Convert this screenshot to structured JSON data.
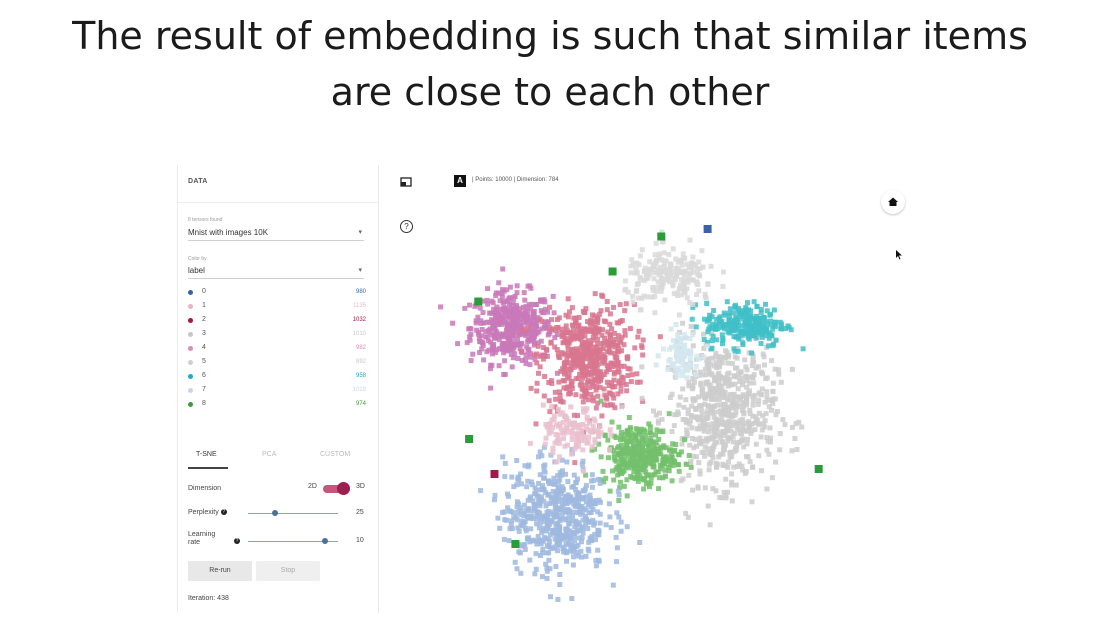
{
  "slide": {
    "title_line1": "The result of embedding is such that similar items",
    "title_line2": "are close to each other"
  },
  "panel": {
    "header": "DATA",
    "dataset_caption": "8 tensors found",
    "dataset_value": "Mnist with images 10K",
    "color_caption": "Color by",
    "color_value": "label",
    "labels": [
      {
        "name": "0",
        "count": "980",
        "color": "#3b62a8"
      },
      {
        "name": "1",
        "count": "1135",
        "color": "#e8b4c8"
      },
      {
        "name": "2",
        "count": "1032",
        "color": "#a3174a"
      },
      {
        "name": "3",
        "count": "1010",
        "color": "#c7c7c7"
      },
      {
        "name": "4",
        "count": "982",
        "color": "#d88fb4"
      },
      {
        "name": "5",
        "count": "892",
        "color": "#cfcfcf"
      },
      {
        "name": "6",
        "count": "958",
        "color": "#25a8c8"
      },
      {
        "name": "7",
        "count": "1028",
        "color": "#c6d5ea"
      },
      {
        "name": "8",
        "count": "974",
        "color": "#3f9b3a"
      }
    ],
    "tabs": [
      "T-SNE",
      "PCA",
      "CUSTOM"
    ],
    "dimension_label": "Dimension",
    "dimension_option_2d": "2D",
    "dimension_option_3d": "3D",
    "perplexity_label": "Perplexity",
    "perplexity_value": "25",
    "perplexity_fraction": 0.3,
    "learning_rate_label_line1": "Learning",
    "learning_rate_label_line2": "rate",
    "learning_rate_value": "10",
    "learning_rate_fraction": 0.85,
    "rerun_button": "Re-run",
    "stop_button": "Stop",
    "iteration_text": "Iteration: 438"
  },
  "toolbar": {
    "selection_icon": "select-rectangle-icon",
    "night_icon": "night-mode-icon",
    "label_icon": "label-toggle-icon",
    "label_icon_glyph": "A",
    "points_text": "Points: 10000",
    "dimension_text": "Dimension: 784"
  },
  "viewer": {
    "help_glyph": "?",
    "home_icon": "home-icon"
  },
  "chart_data": {
    "type": "scatter",
    "title": "",
    "xlabel": "",
    "ylabel": "",
    "series": [
      {
        "name": "4",
        "color": "#c978b9",
        "cx": -5.5,
        "cy": 3.2,
        "sx": 1.6,
        "sy": 1.3,
        "n": 420
      },
      {
        "name": "2",
        "color": "#d8758f",
        "cx": -2.2,
        "cy": 2.0,
        "sx": 1.8,
        "sy": 1.9,
        "n": 520
      },
      {
        "name": "3",
        "color": "#cdcdcd",
        "cx": 3.6,
        "cy": -0.2,
        "sx": 2.1,
        "sy": 2.6,
        "n": 620
      },
      {
        "name": "6",
        "color": "#3fc0c8",
        "cx": 4.6,
        "cy": 3.3,
        "sx": 1.6,
        "sy": 0.8,
        "n": 240
      },
      {
        "name": "8",
        "color": "#72bf6b",
        "cx": 0.0,
        "cy": -1.9,
        "sx": 1.5,
        "sy": 1.1,
        "n": 320
      },
      {
        "name": "7",
        "color": "#9fb9df",
        "cx": -3.6,
        "cy": -4.3,
        "sx": 2.0,
        "sy": 2.0,
        "n": 520
      },
      {
        "name": "1",
        "color": "#eabfcf",
        "cx": -2.8,
        "cy": -1.0,
        "sx": 1.2,
        "sy": 0.9,
        "n": 120
      },
      {
        "name": "5",
        "color": "#d9d9d9",
        "cx": 1.4,
        "cy": 5.2,
        "sx": 1.8,
        "sy": 1.0,
        "n": 200
      },
      {
        "name": "0",
        "color": "#d4e6ef",
        "cx": 1.8,
        "cy": 2.2,
        "sx": 0.7,
        "sy": 0.8,
        "n": 80
      }
    ],
    "outliers": [
      {
        "x": 0.9,
        "y": 6.9,
        "color": "#2a9c3a"
      },
      {
        "x": 2.9,
        "y": 7.2,
        "color": "#3b62a8"
      },
      {
        "x": -7.0,
        "y": 4.3,
        "color": "#2a9c3a"
      },
      {
        "x": -7.4,
        "y": -1.2,
        "color": "#2a9c3a"
      },
      {
        "x": -6.3,
        "y": -2.6,
        "color": "#a3174a"
      },
      {
        "x": -5.4,
        "y": -5.4,
        "color": "#2a9c3a"
      },
      {
        "x": 7.7,
        "y": -2.4,
        "color": "#2a9c3a"
      },
      {
        "x": -1.2,
        "y": 5.5,
        "color": "#2a9c3a"
      }
    ],
    "xlim": [
      -9,
      10
    ],
    "ylim": [
      -8,
      8
    ]
  }
}
